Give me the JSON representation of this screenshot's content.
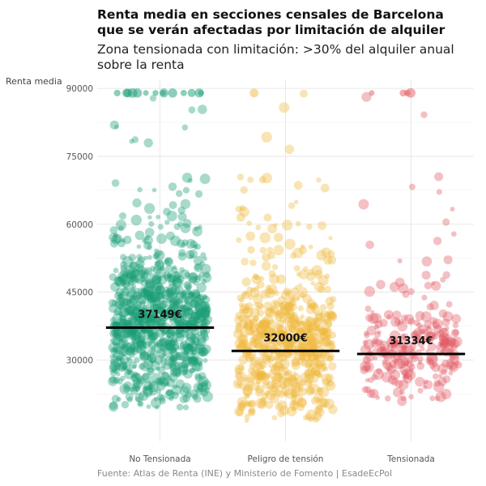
{
  "chart_data": {
    "type": "scatter",
    "title_line1": "Renta media en secciones censales de Barcelona",
    "title_line2": "que se verán afectadas por limitación de alquiler",
    "subtitle_line1": "Zona tensionada con limitación: >30% del alquiler anual",
    "subtitle_line2": "sobre la renta",
    "ylabel": "Renta media",
    "xlabel": "",
    "caption": "Fuente: Atlas de Renta (INE) y Ministerio de Fomento | EsadeEcPol",
    "categories": [
      "No Tensionada",
      "Peligro de tensión",
      "Tensionada"
    ],
    "ylim": [
      12000,
      92000
    ],
    "yticks": [
      30000,
      45000,
      60000,
      75000,
      90000
    ],
    "ytick_labels": [
      "30000",
      "45000",
      "60000",
      "75000",
      "90000"
    ],
    "grid": true,
    "series": [
      {
        "name": "No Tensionada",
        "color": "#1a9e77",
        "mean": 37149,
        "mean_label": "37149€",
        "point_count": 900,
        "value_range": [
          19500,
          89000
        ],
        "points_at_cap": 14
      },
      {
        "name": "Peligro de tensión",
        "color": "#f0b93c",
        "mean": 32000,
        "mean_label": "32000€",
        "point_count": 650,
        "value_range": [
          16500,
          89000
        ],
        "points_at_cap": 1
      },
      {
        "name": "Tensionada",
        "color": "#e35a63",
        "mean": 31334,
        "mean_label": "31334€",
        "point_count": 260,
        "value_range": [
          20500,
          89000
        ],
        "points_at_cap": 4
      }
    ]
  }
}
